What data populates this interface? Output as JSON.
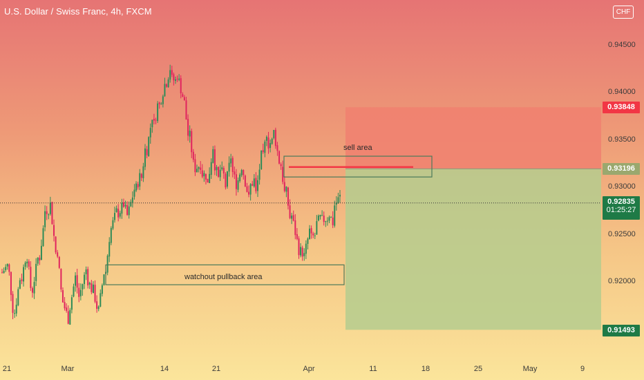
{
  "header": {
    "title": "U.S. Dollar / Swiss Franc, 4h, FXCM",
    "currency_badge": "CHF"
  },
  "colors": {
    "bull_candle": "#2e8b57",
    "bear_candle": "#e0245e",
    "sell_zone": "#f08070",
    "buy_zone": "#b5cc8e",
    "zone_border": "#4a7a5a",
    "stop_tag": "#f23645",
    "entry_tag": "#9aa86e",
    "current_tag": "#1e7a46",
    "target_tag": "#1e7a46"
  },
  "annotations": {
    "sell_area": "sell area",
    "pullback_area": "watchout pullback area"
  },
  "position_tool": {
    "stop_price": 0.93848,
    "entry_price": 0.93196,
    "target_price": 0.91493
  },
  "chart_data": {
    "type": "candlestick",
    "title": "U.S. Dollar / Swiss Franc, 4h, FXCM",
    "y_axis_ticks": [
      "0.94500",
      "0.94000",
      "0.93500",
      "0.93000",
      "0.92500",
      "0.92000"
    ],
    "x_axis_ticks": [
      "21",
      "Mar",
      "14",
      "21",
      "Apr",
      "11",
      "18",
      "25",
      "May",
      "9"
    ],
    "ylim": [
      0.9135,
      0.9477
    ],
    "price_labels": {
      "stop": "0.93848",
      "entry": "0.93196",
      "current": "0.92835",
      "countdown": "01:25:27",
      "target": "0.91493"
    },
    "current_price": 0.92835,
    "zones": {
      "sell_area": {
        "price_low": 0.9311,
        "price_high": 0.9333
      },
      "pullback_area": {
        "price_low": 0.9197,
        "price_high": 0.9218
      }
    },
    "sell_line_price": 0.93215,
    "swing_path": [
      [
        0.921,
        0.9212
      ],
      [
        0.922,
        0.9218
      ],
      [
        0.9165,
        0.9158
      ],
      [
        0.9195,
        0.9205
      ],
      [
        0.9235,
        0.923
      ],
      [
        0.919,
        0.918
      ],
      [
        0.9215,
        0.9228
      ],
      [
        0.9275,
        0.9265
      ],
      [
        0.9282,
        0.9278
      ],
      [
        0.9245,
        0.9225
      ],
      [
        0.918,
        0.9175
      ],
      [
        0.9165,
        0.916
      ],
      [
        0.921,
        0.92
      ],
      [
        0.919,
        0.9175
      ],
      [
        0.9205,
        0.9215
      ],
      [
        0.9195,
        0.919
      ],
      [
        0.917,
        0.9165
      ],
      [
        0.92,
        0.9215
      ],
      [
        0.9255,
        0.926
      ],
      [
        0.927,
        0.9275
      ],
      [
        0.9285,
        0.928
      ],
      [
        0.9275,
        0.9265
      ],
      [
        0.9295,
        0.93
      ],
      [
        0.9305,
        0.9315
      ],
      [
        0.934,
        0.9355
      ],
      [
        0.936,
        0.938
      ],
      [
        0.9385,
        0.9395
      ],
      [
        0.9405,
        0.941
      ],
      [
        0.9415,
        0.943
      ],
      [
        0.942,
        0.9412
      ],
      [
        0.9402,
        0.9395
      ],
      [
        0.936,
        0.9345
      ],
      [
        0.932,
        0.931
      ],
      [
        0.9315,
        0.9325
      ],
      [
        0.93,
        0.9312
      ],
      [
        0.933,
        0.9345
      ],
      [
        0.932,
        0.9305
      ],
      [
        0.93,
        0.931
      ],
      [
        0.932,
        0.9335
      ],
      [
        0.9305,
        0.93
      ],
      [
        0.9315,
        0.933
      ],
      [
        0.93,
        0.9285
      ],
      [
        0.929,
        0.931
      ],
      [
        0.932,
        0.9335
      ],
      [
        0.9345,
        0.9365
      ],
      [
        0.936,
        0.935
      ],
      [
        0.9335,
        0.9325
      ],
      [
        0.93,
        0.9285
      ],
      [
        0.927,
        0.9255
      ],
      [
        0.9235,
        0.924
      ],
      [
        0.9225,
        0.923
      ],
      [
        0.9245,
        0.9255
      ],
      [
        0.926,
        0.925
      ],
      [
        0.9265,
        0.927
      ],
      [
        0.9275,
        0.9268
      ],
      [
        0.928,
        0.926
      ],
      [
        0.9283,
        0.929
      ]
    ]
  }
}
